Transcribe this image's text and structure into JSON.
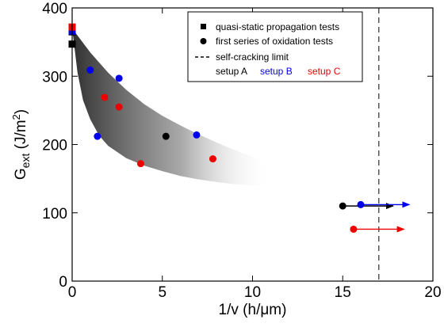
{
  "chart_data": {
    "type": "scatter",
    "xlabel": "1/v (h/μm)",
    "ylabel": "G_ext (J/m²)",
    "xlim": [
      0,
      20
    ],
    "ylim": [
      0,
      400
    ],
    "xticks": [
      0,
      5,
      10,
      15,
      20
    ],
    "yticks": [
      0,
      100,
      200,
      300,
      400
    ],
    "grid": false,
    "legend_position": "top-right",
    "legend": {
      "quasi_static": "quasi-static propagation tests",
      "oxidation": "first series of oxidation tests",
      "self_cracking": "self-cracking limit",
      "setup_a": "setup A",
      "setup_b": "setup B",
      "setup_c": "setup C"
    },
    "colors": {
      "setup_a": "#000000",
      "setup_b": "#0000ee",
      "setup_c": "#ee0000"
    },
    "self_cracking_limit_x": 17,
    "shaded_band": {
      "upper": [
        [
          0,
          370
        ],
        [
          1,
          335
        ],
        [
          2,
          305
        ],
        [
          3,
          280
        ],
        [
          4,
          259
        ],
        [
          5,
          242
        ],
        [
          6,
          228
        ],
        [
          7,
          215
        ],
        [
          8,
          203
        ],
        [
          9,
          192
        ],
        [
          10,
          182
        ],
        [
          11,
          173
        ]
      ],
      "lower": [
        [
          0,
          370
        ],
        [
          0.3,
          305
        ],
        [
          0.6,
          265
        ],
        [
          1,
          237
        ],
        [
          1.5,
          213
        ],
        [
          2,
          198
        ],
        [
          3,
          180
        ],
        [
          4,
          169
        ],
        [
          5,
          161
        ],
        [
          6,
          154
        ],
        [
          7,
          149
        ],
        [
          8,
          145
        ],
        [
          9,
          142
        ],
        [
          10,
          140
        ],
        [
          11,
          139
        ]
      ]
    },
    "series": [
      {
        "marker": "square",
        "color": "#000000",
        "points": [
          [
            0,
            347
          ],
          [
            0,
            365
          ]
        ]
      },
      {
        "marker": "square",
        "color": "#0000ee",
        "points": [
          [
            0,
            366
          ]
        ]
      },
      {
        "marker": "square",
        "color": "#ee0000",
        "points": [
          [
            0,
            372
          ]
        ]
      },
      {
        "marker": "circle",
        "setup": "setup A",
        "color": "#000000",
        "points": [
          [
            5.2,
            212
          ],
          [
            15,
            110
          ]
        ]
      },
      {
        "marker": "circle",
        "setup": "setup B",
        "color": "#0000ee",
        "points": [
          [
            1,
            309
          ],
          [
            1.4,
            212
          ],
          [
            2.6,
            297
          ],
          [
            6.9,
            214
          ],
          [
            16,
            112
          ]
        ]
      },
      {
        "marker": "circle",
        "setup": "setup C",
        "color": "#ee0000",
        "points": [
          [
            1.8,
            269
          ],
          [
            2.6,
            255
          ],
          [
            3.8,
            172
          ],
          [
            7.8,
            179
          ],
          [
            15.6,
            76
          ]
        ]
      }
    ],
    "arrows": [
      {
        "color": "#000000",
        "from": [
          15,
          110
        ],
        "to": [
          17.8,
          110
        ]
      },
      {
        "color": "#0000ee",
        "from": [
          16,
          112
        ],
        "to": [
          18.7,
          112
        ]
      },
      {
        "color": "#ee0000",
        "from": [
          15.6,
          76
        ],
        "to": [
          18.4,
          76
        ]
      }
    ]
  }
}
